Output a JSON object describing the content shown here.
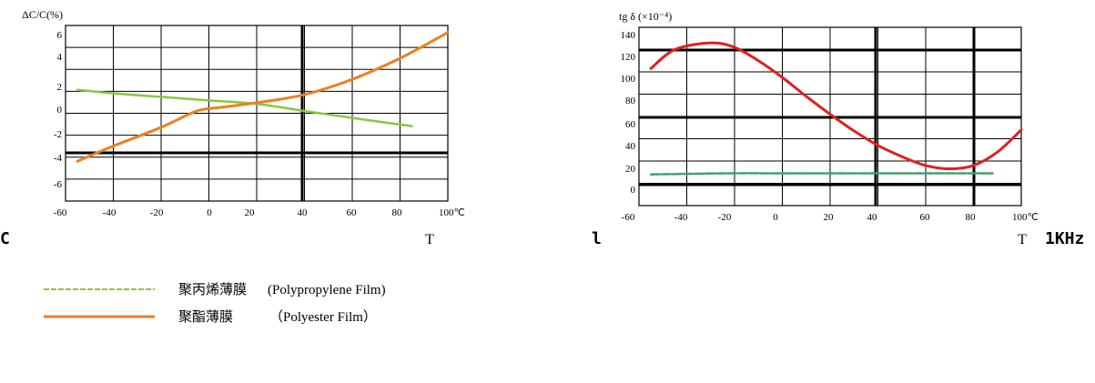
{
  "chart_data": [
    {
      "type": "line",
      "ylabel": "ΔC/C(%)",
      "xlabel": "T",
      "x_unit": "100℃",
      "side_label": "C",
      "x_ticks": [
        "-60",
        "-40",
        "-20",
        "0",
        "20",
        "40",
        "60",
        "80"
      ],
      "y_ticks": [
        "6",
        "4",
        "2",
        "0",
        "-2",
        "-4",
        "-6"
      ],
      "xlim": [
        -60,
        100
      ],
      "ylim": [
        -8,
        7
      ],
      "grid": true,
      "series": [
        {
          "name": "聚丙烯薄膜 (Polypropylene Film)",
          "color": "#8cc63f",
          "x": [
            -55,
            -40,
            -20,
            0,
            20,
            40,
            60,
            85
          ],
          "y": [
            1.5,
            1.2,
            0.9,
            0.6,
            0.3,
            -0.3,
            -0.9,
            -1.6
          ]
        },
        {
          "name": "聚酯薄膜 (Polyester Film)",
          "color": "#f07f20",
          "x": [
            -55,
            -40,
            -20,
            -5,
            5,
            20,
            40,
            60,
            80,
            100
          ],
          "y": [
            -4.6,
            -3.3,
            -1.7,
            -0.3,
            0.0,
            0.4,
            1.1,
            2.4,
            4.2,
            6.4
          ]
        }
      ]
    },
    {
      "type": "line",
      "ylabel": "tg δ (×10⁻⁴)",
      "xlabel": "T",
      "x_unit": "100℃",
      "side_label": "l",
      "frequency_label": "1KHz",
      "x_ticks": [
        "-60",
        "-40",
        "-20",
        "0",
        "20",
        "40",
        "60",
        "80"
      ],
      "y_ticks": [
        "140",
        "120",
        "100",
        "80",
        "60",
        "40",
        "20",
        "0"
      ],
      "xlim": [
        -60,
        100
      ],
      "ylim": [
        -20,
        140
      ],
      "grid": true,
      "series": [
        {
          "name": "聚丙烯薄膜 (Polypropylene Film)",
          "color": "#40a070",
          "x": [
            -55,
            -40,
            -20,
            0,
            20,
            40,
            60,
            80,
            88
          ],
          "y": [
            8,
            8.5,
            9,
            9,
            9,
            9,
            9,
            9,
            9
          ]
        },
        {
          "name": "聚酯薄膜 (Polyester Film)",
          "color": "#e02020",
          "x": [
            -55,
            -45,
            -30,
            -20,
            -10,
            0,
            10,
            20,
            30,
            40,
            50,
            60,
            70,
            80,
            90,
            100
          ],
          "y": [
            103,
            120,
            126,
            122,
            110,
            95,
            78,
            62,
            47,
            34,
            24,
            16,
            13,
            16,
            28,
            48
          ]
        }
      ]
    }
  ],
  "legend": {
    "items": [
      {
        "cn": "聚丙烯薄膜",
        "en": "(Polypropylene Film)",
        "color": "#8cc63f",
        "dashed": true
      },
      {
        "cn": "聚酯薄膜",
        "en": "（Polyester Film）",
        "color": "#f07f20",
        "dashed": false
      }
    ]
  }
}
